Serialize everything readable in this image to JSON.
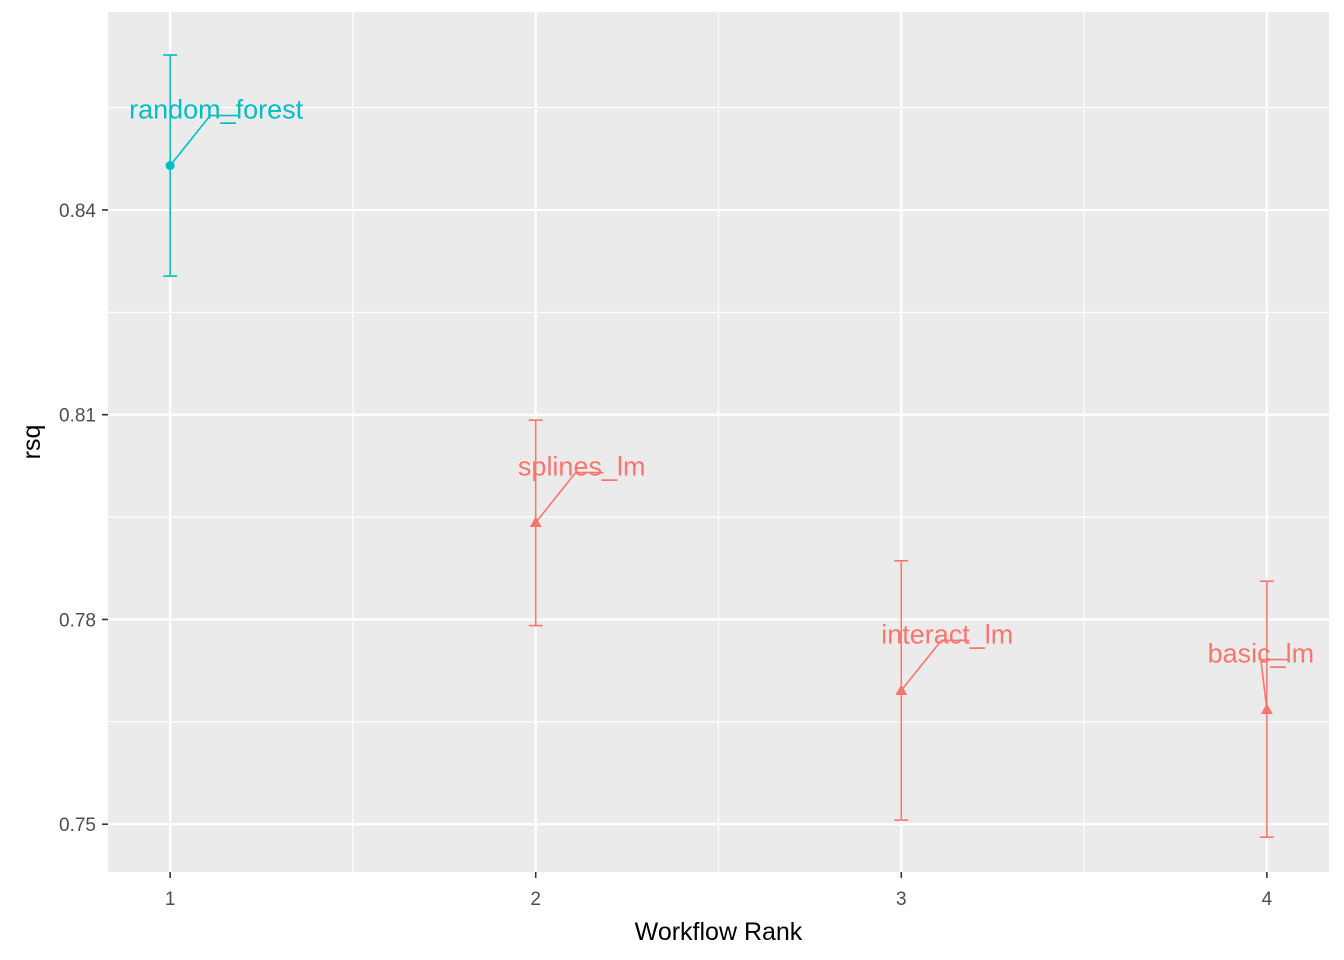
{
  "chart_data": {
    "type": "scatter",
    "title": "",
    "xlabel": "Workflow Rank",
    "ylabel": "rsq",
    "x_ticks": [
      "1",
      "2",
      "3",
      "4"
    ],
    "y_ticks": [
      "0.75",
      "0.78",
      "0.81",
      "0.84"
    ],
    "xlim": [
      0.83,
      4.17
    ],
    "ylim": [
      0.743,
      0.869
    ],
    "grid": true,
    "legend": "none",
    "points": [
      {
        "label": "random_forest",
        "x": 1,
        "y": 0.8465,
        "ymin": 0.8303,
        "ymax": 0.8627,
        "shape": "circle",
        "color": "#00BFC4"
      },
      {
        "label": "splines_lm",
        "x": 2,
        "y": 0.7942,
        "ymin": 0.7791,
        "ymax": 0.8092,
        "shape": "triangle",
        "color": "#F8766D"
      },
      {
        "label": "interact_lm",
        "x": 3,
        "y": 0.7696,
        "ymin": 0.7506,
        "ymax": 0.7886,
        "shape": "triangle",
        "color": "#F8766D"
      },
      {
        "label": "basic_lm",
        "x": 4,
        "y": 0.7668,
        "ymin": 0.7481,
        "ymax": 0.7856,
        "shape": "triangle",
        "color": "#F8766D"
      }
    ]
  }
}
